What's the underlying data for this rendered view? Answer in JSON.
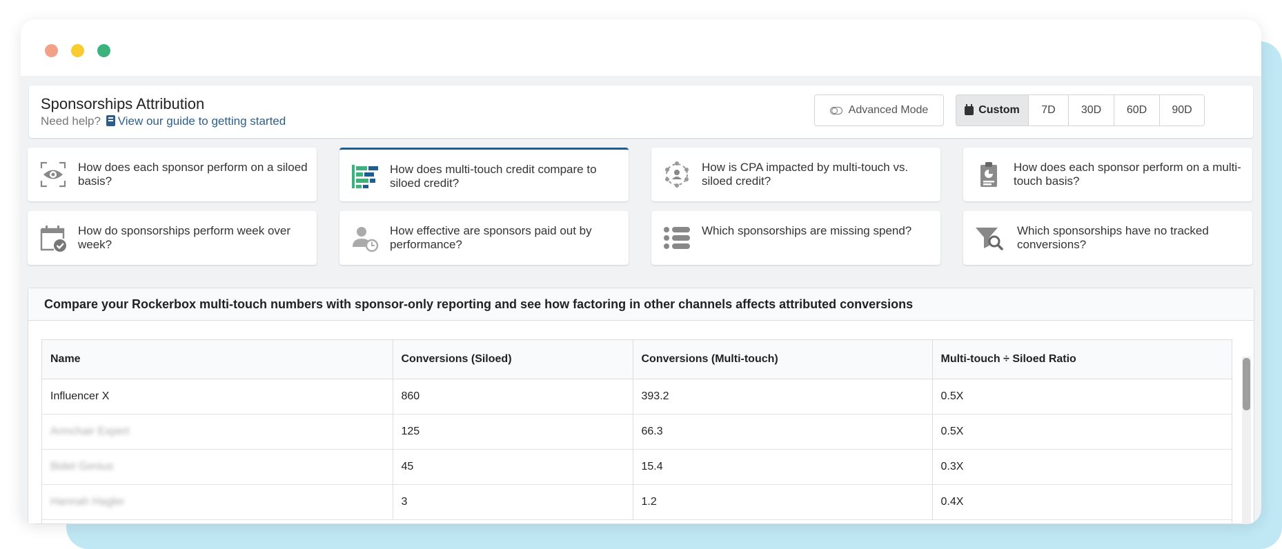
{
  "header": {
    "title": "Sponsorships Attribution",
    "help_prefix": "Need help?",
    "help_link": "View our guide to getting started",
    "advanced_mode_label": "Advanced Mode",
    "date_ranges": [
      "Custom",
      "7D",
      "30D",
      "60D",
      "90D"
    ],
    "active_range": "Custom"
  },
  "questions": [
    {
      "text": "How does each sponsor perform on a siloed basis?",
      "icon": "eye-icon"
    },
    {
      "text": "How does multi-touch credit compare to siloed credit?",
      "icon": "bar-compare-icon",
      "selected": true
    },
    {
      "text": "How is CPA impacted by multi-touch vs. siloed credit?",
      "icon": "person-network-icon"
    },
    {
      "text": "How does each sponsor perform on a multi-touch basis?",
      "icon": "clipboard-chart-icon"
    },
    {
      "text": "How do sponsorships perform week over week?",
      "icon": "calendar-check-icon"
    },
    {
      "text": "How effective are sponsors paid out by performance?",
      "icon": "person-clock-icon"
    },
    {
      "text": "Which sponsorships are missing spend?",
      "icon": "list-icon"
    },
    {
      "text": "Which sponsorships have no tracked conversions?",
      "icon": "filter-search-icon"
    }
  ],
  "panel": {
    "heading": "Compare your Rockerbox multi-touch numbers with sponsor-only reporting and see how factoring in other channels affects attributed conversions"
  },
  "table": {
    "columns": [
      "Name",
      "Conversions (Siloed)",
      "Conversions (Multi-touch)",
      "Multi-touch ÷ Siloed Ratio"
    ],
    "rows": [
      [
        "Influencer X",
        "860",
        "393.2",
        "0.5X"
      ],
      [
        "Armchair Expert",
        "125",
        "66.3",
        "0.5X"
      ],
      [
        "Bidet Genius",
        "45",
        "15.4",
        "0.3X"
      ],
      [
        "Hannah Hagler",
        "3",
        "1.2",
        "0.4X"
      ]
    ]
  },
  "colors": {
    "accent": "#1d5d92",
    "icon_green": "#3cb27c",
    "icon_gray": "#8a8a8a"
  }
}
